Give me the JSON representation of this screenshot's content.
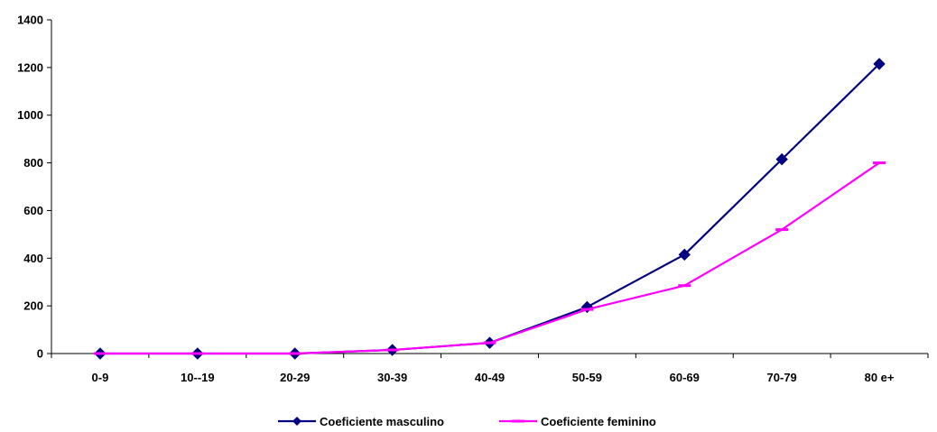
{
  "chart_data": {
    "type": "line",
    "categories": [
      "0-9",
      "10--19",
      "20-29",
      "30-39",
      "40-49",
      "50-59",
      "60-69",
      "70-79",
      "80 e+"
    ],
    "series": [
      {
        "name": "Coeficiente masculino",
        "values": [
          0,
          0,
          0,
          15,
          45,
          195,
          415,
          815,
          1215
        ],
        "color": "#000080",
        "marker": "diamond"
      },
      {
        "name": "Coeficiente feminino",
        "values": [
          0,
          0,
          0,
          15,
          45,
          185,
          285,
          520,
          800
        ],
        "color": "#ff00ff",
        "marker": "dash"
      }
    ],
    "ylim": [
      0,
      1400
    ],
    "yticks": [
      0,
      200,
      400,
      600,
      800,
      1000,
      1200,
      1400
    ],
    "grid": false,
    "legend": "bottom"
  }
}
